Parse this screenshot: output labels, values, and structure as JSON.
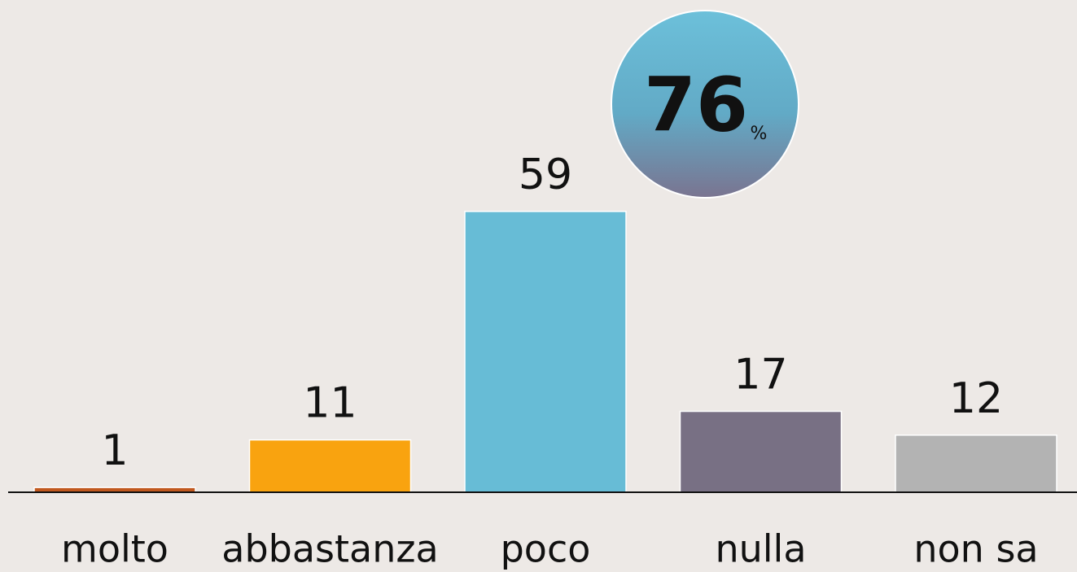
{
  "chart_data": {
    "type": "bar",
    "categories": [
      "molto",
      "abbastanza",
      "poco",
      "nulla",
      "non sa"
    ],
    "values": [
      1,
      11,
      59,
      17,
      12
    ],
    "colors": [
      "#c0581e",
      "#f9a30f",
      "#67bcd6",
      "#787084",
      "#b3b3b3"
    ],
    "annotation": {
      "value": 76,
      "unit": "%"
    }
  }
}
